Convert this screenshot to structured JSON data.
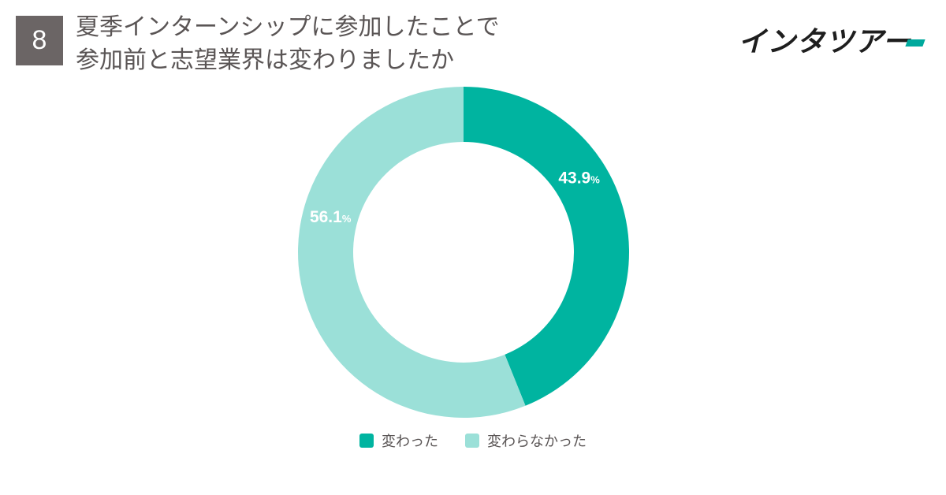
{
  "question": {
    "number": "8",
    "title_line1": "夏季インターンシップに参加したことで",
    "title_line2": "参加前と志望業界は変わりましたか"
  },
  "brand": {
    "name": "インタツアー",
    "accent_color": "#00a99d"
  },
  "colors": {
    "changed": "#00b4a0",
    "unchanged": "#9be0d8",
    "text": "#5a5555",
    "badge": "#6b6565"
  },
  "chart_data": {
    "type": "pie",
    "variant": "donut",
    "title": "",
    "series": [
      {
        "name": "変わった",
        "value": 43.9,
        "label": "43.9",
        "unit": "%",
        "color": "#00b4a0"
      },
      {
        "name": "変わらなかった",
        "value": 56.1,
        "label": "56.1",
        "unit": "%",
        "color": "#9be0d8"
      }
    ],
    "legend_position": "bottom"
  }
}
